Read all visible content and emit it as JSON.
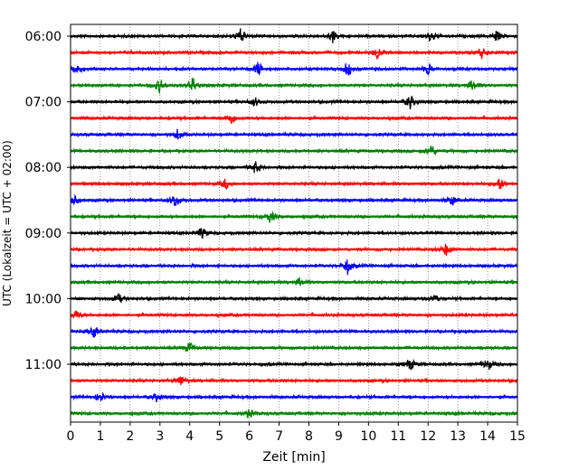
{
  "chart_data": {
    "type": "line",
    "title": "",
    "xlabel": "Zeit  [min]",
    "ylabel": "UTC (Lokalzeit = UTC + 02:00)",
    "xlim": [
      0,
      15
    ],
    "x_ticks": [
      "0",
      "1",
      "2",
      "3",
      "4",
      "5",
      "6",
      "7",
      "8",
      "9",
      "10",
      "11",
      "12",
      "13",
      "14",
      "15"
    ],
    "y_tick_labels": [
      "06:00",
      "07:00",
      "08:00",
      "09:00",
      "10:00",
      "11:00"
    ],
    "grid": "vertical dotted",
    "legend": "none",
    "trace_colors": [
      "#000000",
      "#ff0000",
      "#0000ff",
      "#008000"
    ],
    "traces": [
      {
        "start": "06:00",
        "spikes": [
          [
            5.7,
            8
          ],
          [
            8.8,
            7
          ],
          [
            12.1,
            7
          ],
          [
            14.3,
            6
          ]
        ]
      },
      {
        "start": "06:15",
        "spikes": [
          [
            10.3,
            7
          ],
          [
            13.8,
            6
          ]
        ]
      },
      {
        "start": "06:30",
        "spikes": [
          [
            0.2,
            7
          ],
          [
            6.3,
            8
          ],
          [
            9.3,
            9
          ],
          [
            12.0,
            6
          ]
        ]
      },
      {
        "start": "06:45",
        "spikes": [
          [
            3.0,
            8
          ],
          [
            4.1,
            9
          ],
          [
            13.5,
            7
          ]
        ]
      },
      {
        "start": "07:00",
        "spikes": [
          [
            6.2,
            5
          ],
          [
            11.4,
            8
          ]
        ]
      },
      {
        "start": "07:15",
        "spikes": [
          [
            5.4,
            7
          ]
        ]
      },
      {
        "start": "07:30",
        "spikes": [
          [
            3.6,
            6
          ]
        ]
      },
      {
        "start": "07:45",
        "spikes": [
          [
            12.1,
            7
          ]
        ]
      },
      {
        "start": "08:00",
        "spikes": [
          [
            6.2,
            7
          ]
        ]
      },
      {
        "start": "08:15",
        "spikes": [
          [
            5.2,
            6
          ],
          [
            14.4,
            7
          ]
        ]
      },
      {
        "start": "08:30",
        "spikes": [
          [
            0.1,
            6
          ],
          [
            3.5,
            8
          ],
          [
            12.8,
            6
          ]
        ]
      },
      {
        "start": "08:45",
        "spikes": [
          [
            6.7,
            7
          ]
        ]
      },
      {
        "start": "09:00",
        "spikes": [
          [
            4.4,
            6
          ]
        ]
      },
      {
        "start": "09:15",
        "spikes": [
          [
            12.6,
            7
          ]
        ]
      },
      {
        "start": "09:30",
        "spikes": [
          [
            9.3,
            9
          ]
        ]
      },
      {
        "start": "09:45",
        "spikes": [
          [
            7.7,
            5
          ]
        ]
      },
      {
        "start": "10:00",
        "spikes": [
          [
            1.6,
            6
          ],
          [
            12.2,
            5
          ]
        ]
      },
      {
        "start": "10:15",
        "spikes": [
          [
            0.2,
            5
          ]
        ]
      },
      {
        "start": "10:30",
        "spikes": [
          [
            0.8,
            7
          ]
        ]
      },
      {
        "start": "10:45",
        "spikes": [
          [
            4.0,
            6
          ]
        ]
      },
      {
        "start": "11:00",
        "spikes": [
          [
            11.4,
            7
          ],
          [
            14.0,
            7
          ]
        ]
      },
      {
        "start": "11:15",
        "spikes": [
          [
            3.7,
            6
          ]
        ]
      },
      {
        "start": "11:30",
        "spikes": [
          [
            1.0,
            6
          ],
          [
            2.9,
            5
          ]
        ]
      },
      {
        "start": "11:45",
        "spikes": [
          [
            6.0,
            5
          ]
        ]
      }
    ]
  }
}
